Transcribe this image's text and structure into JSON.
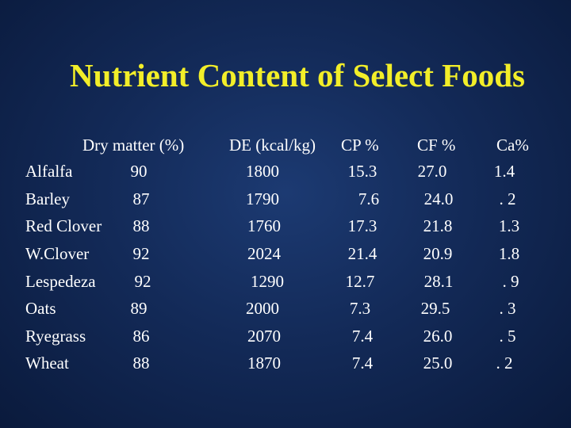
{
  "slide": {
    "title": "Nutrient Content of Select Foods",
    "title_color": "#f2ee29",
    "background_color": "#132a58"
  },
  "table": {
    "headers": [
      "Dry matter (%)",
      "DE (kcal/kg)",
      "CP %",
      "CF %",
      "Ca%"
    ],
    "rows": [
      {
        "food": "Alfalfa",
        "dm": "90",
        "de": "1800",
        "cp": "15.3",
        "cf": "27.0",
        "ca": "1.4"
      },
      {
        "food": "Barley",
        "dm": "87",
        "de": "1790",
        "cp": "7.6",
        "cf": "24.0",
        "ca": ". 2"
      },
      {
        "food": "Red Clover",
        "dm": "88",
        "de": "1760",
        "cp": "17.3",
        "cf": "21.8",
        "ca": "1.3"
      },
      {
        "food": "W.Clover",
        "dm": "92",
        "de": "2024",
        "cp": "21.4",
        "cf": "20.9",
        "ca": "1.8"
      },
      {
        "food": "Lespedeza",
        "dm": "92",
        "de": "1290",
        "cp": "12.7",
        "cf": "28.1",
        "ca": ". 9"
      },
      {
        "food": "Oats",
        "dm": "89",
        "de": "2000",
        "cp": "7.3",
        "cf": "29.5",
        "ca": ". 3"
      },
      {
        "food": "Ryegrass",
        "dm": "86",
        "de": "2070",
        "cp": "7.4",
        "cf": "26.0",
        "ca": ". 5"
      },
      {
        "food": "Wheat",
        "dm": "88",
        "de": "1870",
        "cp": "7.4",
        "cf": "25.0",
        "ca": ". 2"
      }
    ]
  }
}
